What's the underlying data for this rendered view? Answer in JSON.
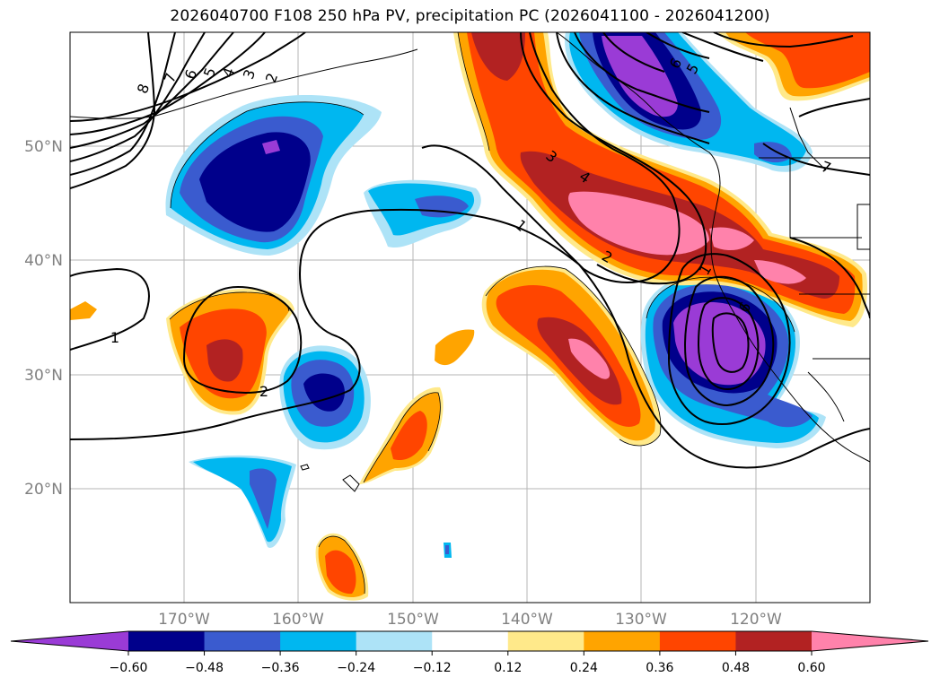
{
  "title": "2026040700 F108 250 hPa PV, precipitation PC (2026041100 - 2026041200)",
  "map": {
    "lat_ticks": [
      "50°N",
      "40°N",
      "30°N",
      "20°N"
    ],
    "lon_ticks": [
      "170°W",
      "160°W",
      "150°W",
      "140°W",
      "130°W",
      "120°W"
    ],
    "contour_labels": [
      "1",
      "2",
      "1",
      "2",
      "3",
      "4",
      "5",
      "6",
      "7",
      "8",
      "1",
      "2",
      "3",
      "4",
      "5",
      "6",
      "7"
    ]
  },
  "colorbar": {
    "ticks": [
      "−0.60",
      "−0.48",
      "−0.36",
      "−0.24",
      "−0.12",
      "0.12",
      "0.24",
      "0.36",
      "0.48",
      "0.60"
    ],
    "colors": [
      "#9a3bd6",
      "#00008b",
      "#3a5bcf",
      "#00b7f0",
      "#ade3f7",
      "#ffffff",
      "#ffe98a",
      "#ffa400",
      "#ff4500",
      "#b22222",
      "#ff82ab"
    ]
  }
}
